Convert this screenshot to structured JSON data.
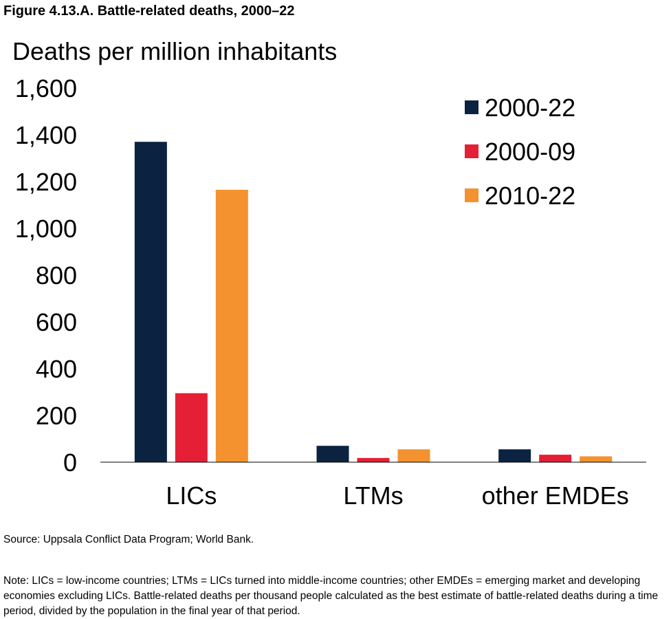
{
  "figure_title": "Figure 4.13.A. Battle-related deaths, 2000–22",
  "source": "Source: Uppsala Conflict Data Program; World Bank.",
  "note": "Note: LICs = low-income countries; LTMs = LICs turned into middle-income countries; other EMDEs = emerging market and developing economies excluding LICs. Battle-related deaths per thousand people calculated as the best estimate of battle-related deaths during a time period, divided by the population in the final year of that period.",
  "chart_data": {
    "type": "bar",
    "title": "",
    "ylabel": "Deaths per million inhabitants",
    "xlabel": "",
    "categories": [
      "LICs",
      "LTMs",
      "other EMDEs"
    ],
    "series": [
      {
        "name": "2000-22",
        "color": "#0b2341",
        "values": [
          1370,
          70,
          55
        ]
      },
      {
        "name": "2000-09",
        "color": "#e41f36",
        "values": [
          295,
          18,
          32
        ]
      },
      {
        "name": "2010-22",
        "color": "#f3922f",
        "values": [
          1165,
          55,
          25
        ]
      }
    ],
    "ylim": [
      0,
      1600
    ],
    "yticks": [
      0,
      200,
      400,
      600,
      800,
      1000,
      1200,
      1400,
      1600
    ],
    "ytick_labels": [
      "0",
      "200",
      "400",
      "600",
      "800",
      "1,000",
      "1,200",
      "1,400",
      "1,600"
    ],
    "grid": false,
    "legend_position": "top-right"
  }
}
